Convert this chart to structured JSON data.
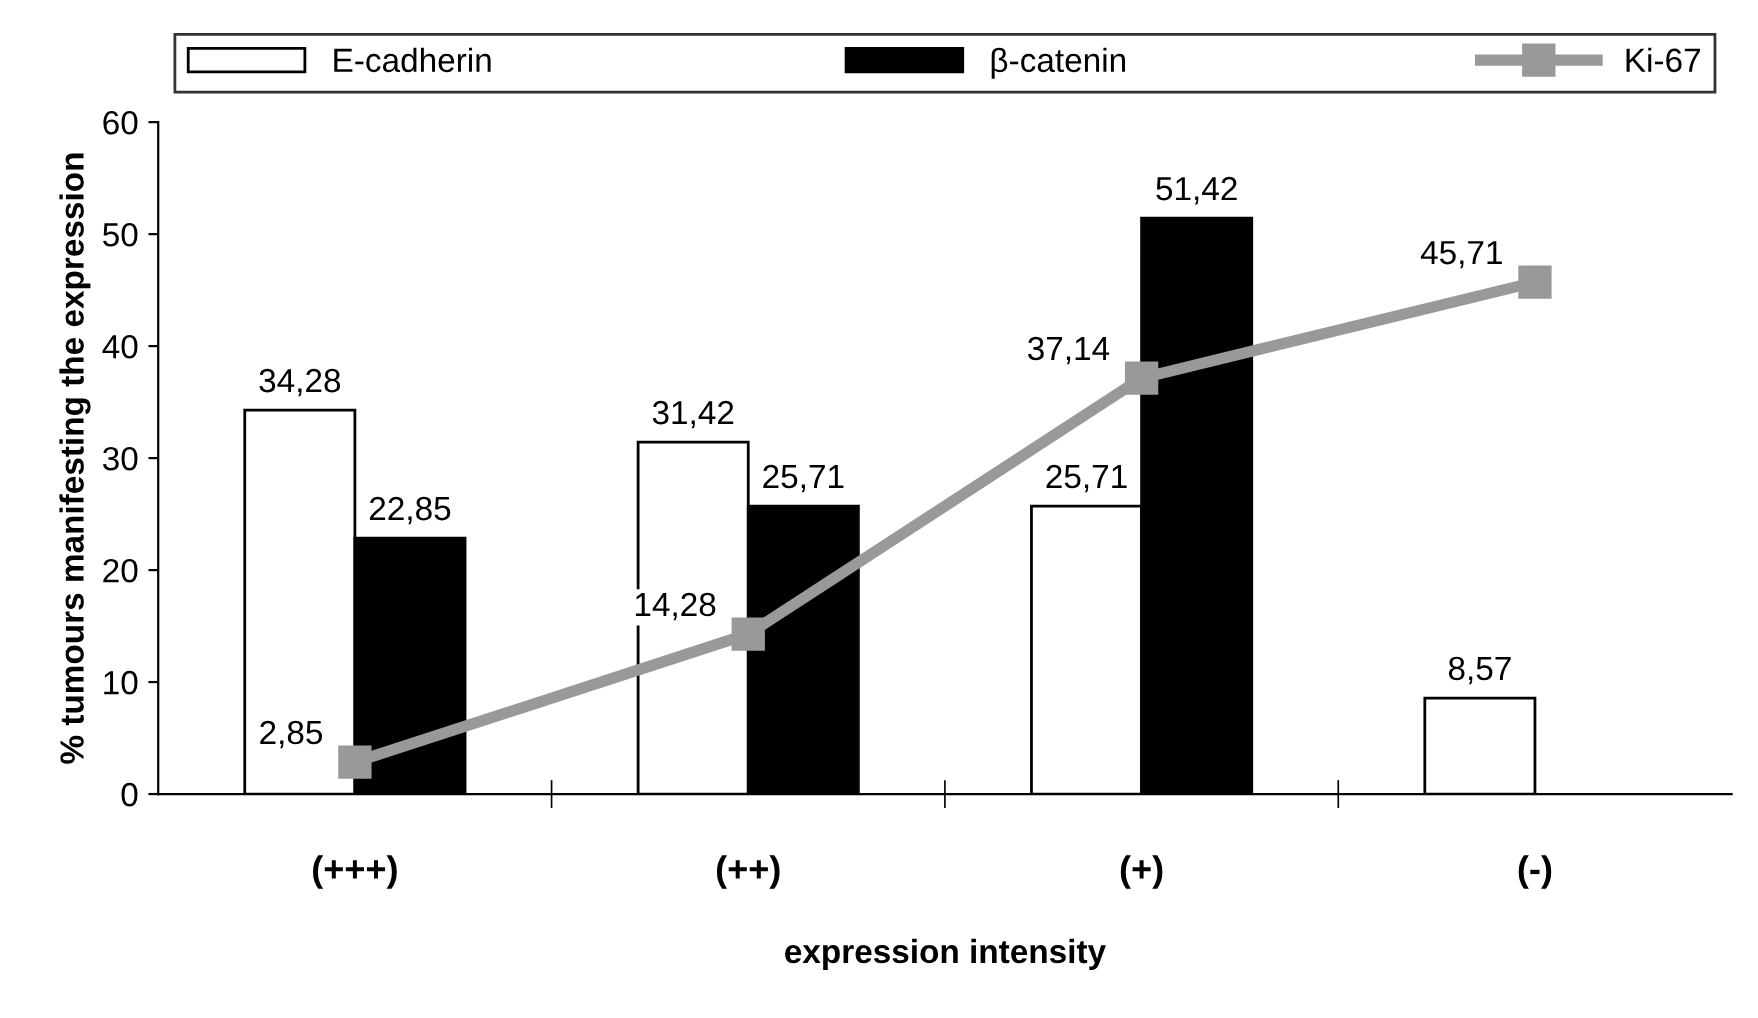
{
  "chart_data": {
    "type": "bar",
    "xlabel": "expression intensity",
    "ylabel": "% tumours manifesting the expression",
    "categories": [
      "(+++)",
      "(++)",
      "(+)",
      "(-)"
    ],
    "series": [
      {
        "name": "E-cadherin",
        "color": "#ffffff",
        "values": [
          34.28,
          31.42,
          25.71,
          8.57
        ],
        "value_labels": [
          "34,28",
          "31,42",
          "25,71",
          "8,57"
        ]
      },
      {
        "name": "β-catenin",
        "color": "#000000",
        "values": [
          22.85,
          25.71,
          51.42,
          null
        ],
        "value_labels": [
          "22,85",
          "25,71",
          "51,42",
          null
        ]
      },
      {
        "name": "Ki-67",
        "type": "line",
        "color": "#999999",
        "marker": "square",
        "line_style": "solid",
        "values": [
          2.85,
          14.28,
          37.14,
          45.71
        ],
        "value_labels": [
          "2,85",
          "14,28",
          "37,14",
          "45,71"
        ]
      }
    ],
    "ylim": [
      0,
      60
    ],
    "yticks": [
      0,
      10,
      20,
      30,
      40,
      50,
      60
    ],
    "grid": false,
    "legend": "top"
  }
}
